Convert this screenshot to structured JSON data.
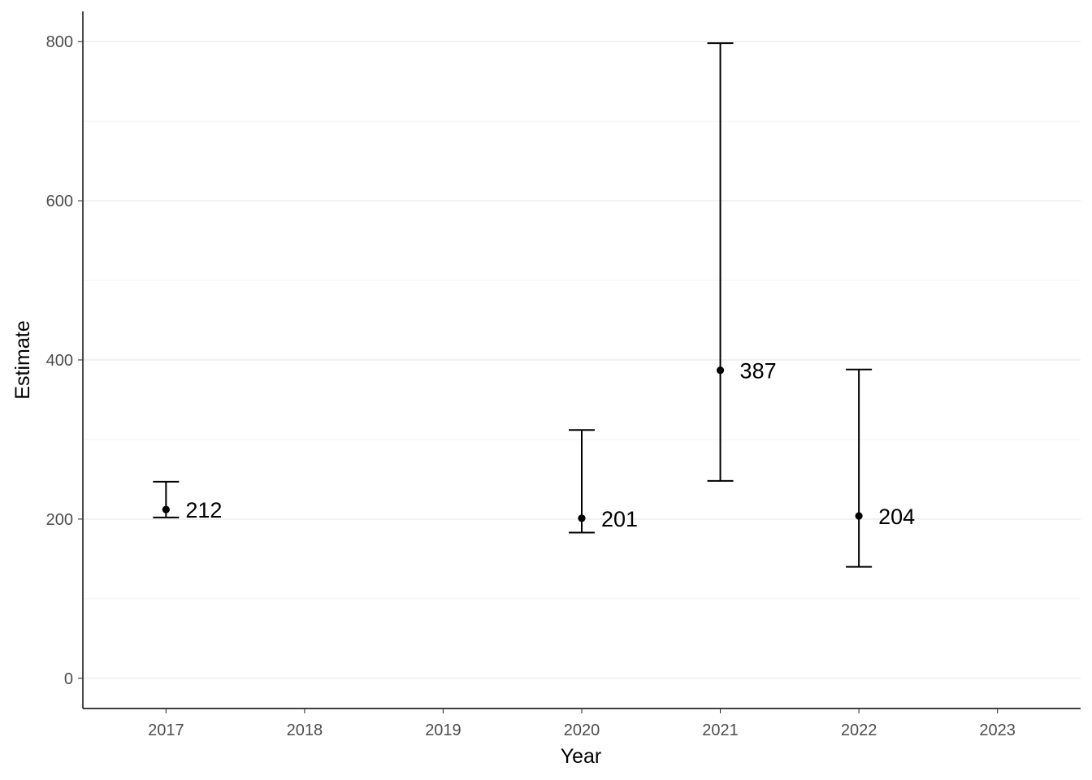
{
  "chart_data": {
    "type": "scatter",
    "xlabel": "Year",
    "ylabel": "Estimate",
    "x_ticks": [
      "2017",
      "2018",
      "2019",
      "2020",
      "2021",
      "2022",
      "2023"
    ],
    "y_ticks": [
      "0",
      "200",
      "400",
      "600",
      "800"
    ],
    "xlim": [
      2016.4,
      2023.6
    ],
    "ylim": [
      -38,
      838
    ],
    "y_major_breaks": [
      0,
      200,
      400,
      600,
      800
    ],
    "y_minor_breaks": [
      100,
      300,
      500,
      700
    ],
    "grid": "horizontal",
    "points": [
      {
        "x": 2017,
        "y": 212,
        "ymin": 202,
        "ymax": 247,
        "label": "212"
      },
      {
        "x": 2020,
        "y": 201,
        "ymin": 183,
        "ymax": 312,
        "label": "201"
      },
      {
        "x": 2021,
        "y": 387,
        "ymin": 248,
        "ymax": 798,
        "label": "387"
      },
      {
        "x": 2022,
        "y": 204,
        "ymin": 140,
        "ymax": 388,
        "label": "204"
      }
    ]
  }
}
